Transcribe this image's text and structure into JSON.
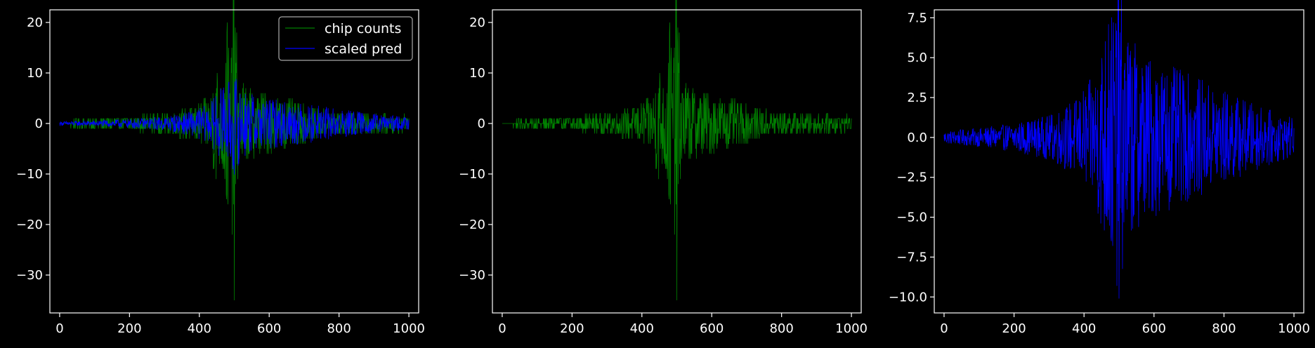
{
  "chart_data": [
    {
      "type": "line",
      "xlim": [
        -28,
        1028
      ],
      "ylim": [
        -37.5,
        22.5
      ],
      "xticks": [
        0,
        200,
        400,
        600,
        800,
        1000
      ],
      "yticks": [
        -30,
        -20,
        -10,
        0,
        10,
        20
      ],
      "grid": false,
      "legend": "top-right",
      "series": [
        {
          "name": "chip counts",
          "color": "#008000",
          "profile": [
            [
              0,
              0
            ],
            [
              50,
              1
            ],
            [
              100,
              1.2
            ],
            [
              200,
              1.5
            ],
            [
              300,
              2
            ],
            [
              380,
              3.5
            ],
            [
              430,
              6
            ],
            [
              450,
              13
            ],
            [
              460,
              8
            ],
            [
              470,
              14
            ],
            [
              480,
              20
            ],
            [
              490,
              14
            ],
            [
              500,
              35
            ],
            [
              510,
              11
            ],
            [
              530,
              8
            ],
            [
              560,
              7
            ],
            [
              600,
              6
            ],
            [
              650,
              5
            ],
            [
              700,
              4
            ],
            [
              750,
              3
            ],
            [
              800,
              2.5
            ],
            [
              900,
              2
            ],
            [
              1000,
              1.5
            ]
          ]
        },
        {
          "name": "scaled pred",
          "color": "#0000ff",
          "profile": [
            [
              0,
              0.4
            ],
            [
              100,
              0.6
            ],
            [
              200,
              0.9
            ],
            [
              300,
              1.4
            ],
            [
              380,
              2.5
            ],
            [
              430,
              4
            ],
            [
              460,
              7
            ],
            [
              480,
              8
            ],
            [
              500,
              10
            ],
            [
              520,
              7
            ],
            [
              560,
              5.5
            ],
            [
              600,
              5
            ],
            [
              650,
              4.5
            ],
            [
              700,
              4
            ],
            [
              800,
              3
            ],
            [
              900,
              2
            ],
            [
              1000,
              1.2
            ]
          ]
        }
      ]
    },
    {
      "type": "line",
      "xlim": [
        -28,
        1028
      ],
      "ylim": [
        -37.5,
        22.5
      ],
      "xticks": [
        0,
        200,
        400,
        600,
        800,
        1000
      ],
      "yticks": [
        -30,
        -20,
        -10,
        0,
        10,
        20
      ],
      "grid": false,
      "series": [
        {
          "color": "#008000",
          "profile": [
            [
              0,
              0
            ],
            [
              50,
              1
            ],
            [
              100,
              1.2
            ],
            [
              200,
              1.5
            ],
            [
              300,
              2
            ],
            [
              380,
              3.5
            ],
            [
              430,
              6
            ],
            [
              450,
              13
            ],
            [
              460,
              8
            ],
            [
              470,
              14
            ],
            [
              480,
              20
            ],
            [
              490,
              14
            ],
            [
              500,
              35
            ],
            [
              510,
              11
            ],
            [
              530,
              8
            ],
            [
              560,
              7
            ],
            [
              600,
              6
            ],
            [
              650,
              5
            ],
            [
              700,
              4
            ],
            [
              750,
              3
            ],
            [
              800,
              2.5
            ],
            [
              900,
              2
            ],
            [
              1000,
              1.5
            ]
          ]
        }
      ]
    },
    {
      "type": "line",
      "xlim": [
        -28,
        1028
      ],
      "ylim": [
        -11.0,
        8.0
      ],
      "xticks": [
        0,
        200,
        400,
        600,
        800,
        1000
      ],
      "yticks": [
        -10.0,
        -7.5,
        -5.0,
        -2.5,
        0.0,
        2.5,
        5.0,
        7.5
      ],
      "grid": false,
      "series": [
        {
          "color": "#0000ff",
          "profile": [
            [
              0,
              0.4
            ],
            [
              100,
              0.6
            ],
            [
              200,
              0.9
            ],
            [
              300,
              1.4
            ],
            [
              380,
              2.5
            ],
            [
              430,
              4
            ],
            [
              460,
              7
            ],
            [
              480,
              8
            ],
            [
              500,
              10
            ],
            [
              520,
              7
            ],
            [
              560,
              5.5
            ],
            [
              600,
              5
            ],
            [
              650,
              4.5
            ],
            [
              700,
              4
            ],
            [
              800,
              3
            ],
            [
              900,
              2
            ],
            [
              1000,
              1.2
            ]
          ]
        }
      ]
    }
  ]
}
